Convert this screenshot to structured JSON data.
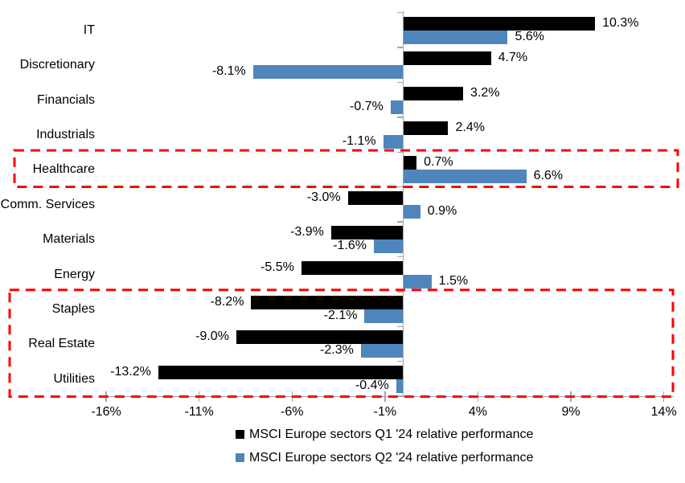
{
  "chart_data": {
    "type": "bar",
    "orientation": "horizontal",
    "title": "",
    "xlabel": "",
    "ylabel": "",
    "grid": false,
    "categories": [
      "IT",
      "Discretionary",
      "Financials",
      "Industrials",
      "Healthcare",
      "Comm. Services",
      "Materials",
      "Energy",
      "Staples",
      "Real Estate",
      "Utilities"
    ],
    "series": [
      {
        "name": "MSCI Europe sectors Q1 '24 relative performance",
        "color": "#000000",
        "values": [
          10.3,
          4.7,
          3.2,
          2.4,
          0.7,
          -3.0,
          -3.9,
          -5.5,
          -8.2,
          -9.0,
          -13.2
        ],
        "labels": [
          "10.3%",
          "4.7%",
          "3.2%",
          "2.4%",
          "0.7%",
          "-3.0%",
          "-3.9%",
          "-5.5%",
          "-8.2%",
          "-9.0%",
          "-13.2%"
        ]
      },
      {
        "name": "MSCI Europe sectors Q2 '24 relative performance",
        "color": "#4e86bc",
        "values": [
          5.6,
          -8.1,
          -0.7,
          -1.1,
          6.6,
          0.9,
          -1.6,
          1.5,
          -2.1,
          -2.3,
          -0.4
        ],
        "labels": [
          "5.6%",
          "-8.1%",
          "-0.7%",
          "-1.1%",
          "6.6%",
          "0.9%",
          "-1.6%",
          "1.5%",
          "-2.1%",
          "-2.3%",
          "-0.4%"
        ]
      }
    ],
    "x_axis": {
      "min": -16.35,
      "max": 14.5,
      "ticks": [
        -16,
        -11,
        -6,
        -1,
        4,
        9,
        14
      ],
      "tick_labels": [
        "-16%",
        "-11%",
        "-6%",
        "-1%",
        "4%",
        "9%",
        "14%"
      ]
    },
    "legend": {
      "position": "bottom",
      "entries": [
        "MSCI Europe sectors Q1 '24 relative performance",
        "MSCI Europe sectors Q2 '24 relative performance"
      ]
    },
    "highlights": [
      {
        "name": "healthcare-highlight",
        "categories": [
          "Healthcare"
        ],
        "color": "#ff0000"
      },
      {
        "name": "defensives-highlight",
        "categories": [
          "Staples",
          "Real Estate",
          "Utilities"
        ],
        "color": "#ff0000"
      }
    ],
    "colors": {
      "q1_bar": "#000000",
      "q2_bar": "#4e86bc",
      "highlight_box": "#ff0000",
      "axis": "#a6a6a6",
      "text": "#000000",
      "background": "#ffffff"
    }
  }
}
